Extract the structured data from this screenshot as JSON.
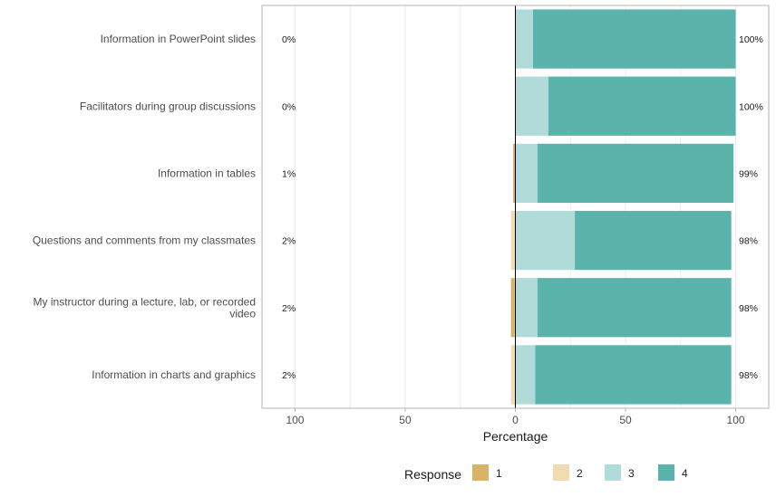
{
  "chart_data": {
    "type": "bar",
    "orientation": "horizontal-diverging",
    "categories": [
      "Information in PowerPoint slides",
      "Facilitators during group discussions",
      "Information in tables",
      "Questions and comments from my classmates",
      "My instructor during a lecture, lab, or recorded video",
      "Information in charts and graphics"
    ],
    "category_lines": [
      [
        "Information in PowerPoint slides"
      ],
      [
        "Facilitators during group discussions"
      ],
      [
        "Information in tables"
      ],
      [
        "Questions and comments from my classmates"
      ],
      [
        "My instructor during a lecture, lab, or recorded",
        "video"
      ],
      [
        "Information in charts and graphics"
      ]
    ],
    "series": [
      {
        "name": "1",
        "color": "#d8b365",
        "side": "negative",
        "values": [
          0,
          0,
          0.8,
          0,
          1.6,
          0
        ]
      },
      {
        "name": "2",
        "color": "#f0dcb0",
        "side": "negative",
        "values": [
          0,
          0,
          0.2,
          2,
          0.4,
          2
        ]
      },
      {
        "name": "3",
        "color": "#b0dbd8",
        "side": "positive",
        "values": [
          8,
          15,
          10,
          27,
          10,
          9
        ]
      },
      {
        "name": "4",
        "color": "#5ab4ac",
        "side": "positive",
        "values": [
          92,
          85,
          89,
          71,
          88,
          89
        ]
      }
    ],
    "left_labels": [
      "0%",
      "0%",
      "1%",
      "2%",
      "2%",
      "2%"
    ],
    "right_labels": [
      "100%",
      "100%",
      "99%",
      "98%",
      "98%",
      "98%"
    ],
    "xlim": [
      -115,
      115
    ],
    "x_ticks": [
      {
        "value": -100,
        "label": "100"
      },
      {
        "value": -50,
        "label": "50"
      },
      {
        "value": 0,
        "label": "0"
      },
      {
        "value": 50,
        "label": "50"
      },
      {
        "value": 100,
        "label": "100"
      }
    ],
    "x_minor_ticks": [
      -75,
      -25,
      25,
      75
    ],
    "xlabel": "Percentage",
    "ylabel": "",
    "title": "",
    "legend": {
      "title": "Response",
      "position": "bottom",
      "items": [
        "1",
        "2",
        "3",
        "4"
      ]
    },
    "grid": true
  }
}
